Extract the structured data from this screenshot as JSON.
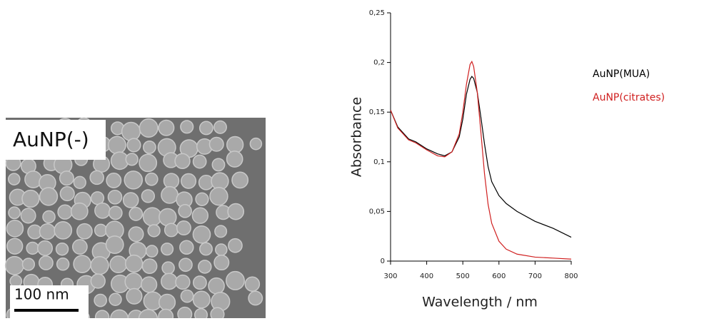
{
  "micrograph": {
    "label": "AuNP(-)",
    "scale_bar": "100 nm"
  },
  "chart_data": {
    "type": "line",
    "xlabel": "Wavelength / nm",
    "ylabel": "Absorbance",
    "xlim": [
      300,
      800
    ],
    "xticks": [
      300,
      400,
      500,
      600,
      700,
      800
    ],
    "ylim": [
      0,
      0.25
    ],
    "yticks": [
      0,
      {
        "value": 0.05,
        "label": "0,05"
      },
      {
        "value": 0.1,
        "label": "0,1"
      },
      {
        "value": 0.15,
        "label": "0,15"
      },
      {
        "value": 0.2,
        "label": "0,2"
      },
      {
        "value": 0.25,
        "label": "0,25"
      }
    ],
    "x": [
      300,
      320,
      350,
      370,
      400,
      430,
      450,
      470,
      490,
      500,
      510,
      520,
      525,
      530,
      540,
      550,
      560,
      570,
      580,
      600,
      620,
      650,
      700,
      750,
      800
    ],
    "series": [
      {
        "name": "AuNP(MUA)",
        "color": "#000000",
        "values": [
          0.152,
          0.135,
          0.123,
          0.12,
          0.113,
          0.108,
          0.106,
          0.11,
          0.125,
          0.143,
          0.168,
          0.183,
          0.186,
          0.184,
          0.17,
          0.145,
          0.118,
          0.095,
          0.08,
          0.066,
          0.058,
          0.05,
          0.04,
          0.033,
          0.024
        ]
      },
      {
        "name": "AuNP(citrates)",
        "color": "#d02020",
        "values": [
          0.152,
          0.134,
          0.122,
          0.119,
          0.112,
          0.106,
          0.105,
          0.11,
          0.128,
          0.15,
          0.178,
          0.198,
          0.201,
          0.196,
          0.17,
          0.13,
          0.088,
          0.057,
          0.038,
          0.02,
          0.012,
          0.007,
          0.004,
          0.003,
          0.002
        ]
      }
    ]
  }
}
